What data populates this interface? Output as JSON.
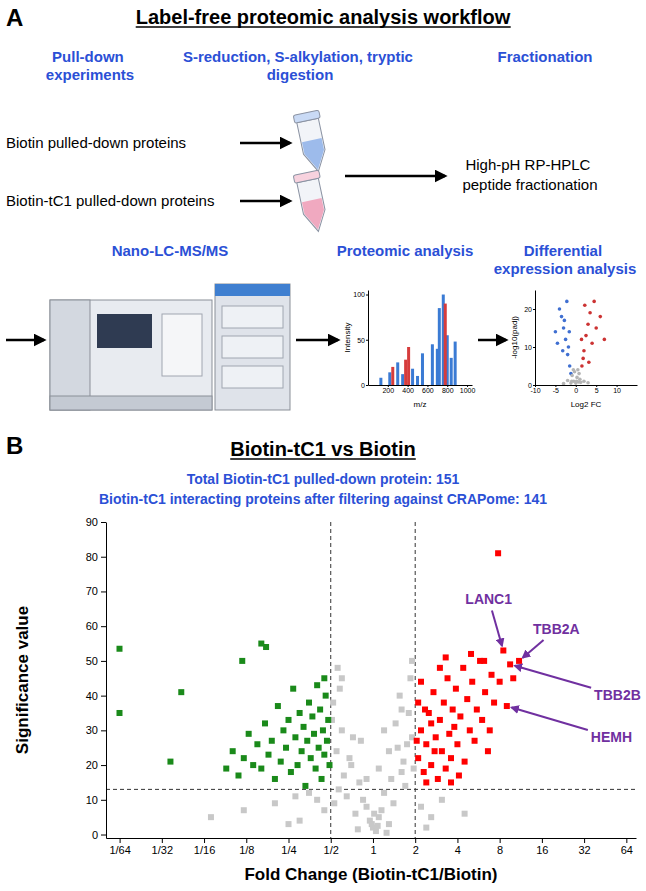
{
  "workflow": {
    "panel_label": "A",
    "title": "Label-free proteomic analysis workflow",
    "steps": [
      "Pull-down experiments",
      "S-reduction, S-alkylation, tryptic digestion",
      "Fractionation",
      "Nano-LC-MS/MS",
      "Proteomic analysis",
      "Differential expression analysis"
    ],
    "samples": [
      "Biotin pulled-down proteins",
      "Biotin-tC1 pulled-down proteins"
    ],
    "fractionation": "High-pH RP-HPLC peptide fractionation",
    "spectrum": {
      "type": "bar",
      "x_label": "m/z",
      "y_label": "Intensity",
      "xlim": [
        0,
        1050
      ],
      "ylim": [
        0,
        105
      ],
      "xticks": [
        200,
        400,
        600,
        800,
        1000
      ],
      "yticks": [
        0,
        50,
        100
      ],
      "series": [
        {
          "color": "#3b7bd4",
          "x": [
            130,
            220,
            300,
            350,
            450,
            500,
            550,
            650,
            700,
            720,
            760,
            800,
            840,
            880
          ],
          "values": [
            8,
            14,
            25,
            12,
            18,
            10,
            35,
            45,
            40,
            85,
            100,
            55,
            30,
            48
          ]
        },
        {
          "color": "#d63c3c",
          "x": [
            250,
            380,
            410,
            780
          ],
          "values": [
            20,
            28,
            42,
            90
          ]
        }
      ]
    },
    "volcano_icon": {
      "type": "scatter",
      "x_label": "Log2 FC",
      "y_label": "-log10(padj)",
      "xlim": [
        -10,
        15
      ],
      "ylim": [
        0,
        25
      ],
      "xticks": [
        -10,
        -5,
        0,
        5,
        10
      ],
      "yticks": [
        0,
        10,
        20
      ],
      "series": [
        {
          "color": "#3f6fd1",
          "x": [
            -1.5,
            -2,
            -2.5,
            -3,
            -3.5,
            -4,
            -2.2,
            -1.8,
            -5,
            -1.2,
            -3.2,
            -2.8,
            -4.5,
            -1.6
          ],
          "values": [
            5,
            8,
            12,
            15,
            18,
            20,
            22,
            10,
            14,
            3,
            9,
            17,
            11,
            14
          ]
        },
        {
          "color": "#cc3333",
          "x": [
            1.5,
            2,
            2.5,
            3,
            3.5,
            4,
            2.2,
            1.8,
            5,
            6,
            7,
            4.5,
            3.2,
            1.4
          ],
          "values": [
            5,
            9,
            13,
            16,
            19,
            11,
            21,
            7,
            15,
            18,
            12,
            22,
            6,
            12
          ]
        },
        {
          "color": "#b5b5b5",
          "x": [
            -0.5,
            0.3,
            0,
            0.8,
            -0.9,
            0.5,
            -0.3,
            1,
            -1,
            0.2,
            -0.6,
            0.7,
            -1.2,
            1.2,
            2,
            -2,
            3,
            -3
          ],
          "values": [
            1,
            2,
            0.5,
            3,
            2.5,
            4,
            3.5,
            1.5,
            1,
            1,
            4,
            0.8,
            0.5,
            0.7,
            1,
            1.2,
            0.6,
            0.4
          ]
        }
      ]
    }
  },
  "chart_data": {
    "panel_label": "B",
    "type": "scatter",
    "title": "Biotin-tC1 vs Biotin",
    "subtitle": [
      "Total Biotin-tC1 pulled-down protein: 151",
      "Biotin-tC1 interacting proteins after filtering against CRAPome: 141"
    ],
    "x_label": "Fold Change (Biotin-tC1/Biotin)",
    "y_label": "Significance value",
    "log": "x",
    "grid": false,
    "marker": "square",
    "xlim": [
      0.0125,
      75
    ],
    "ylim": [
      -1,
      90
    ],
    "xticks": [
      {
        "value": 0.015625,
        "label": "1/64"
      },
      {
        "value": 0.03125,
        "label": "1/32"
      },
      {
        "value": 0.0625,
        "label": "1/16"
      },
      {
        "value": 0.125,
        "label": "1/8"
      },
      {
        "value": 0.25,
        "label": "1/4"
      },
      {
        "value": 0.5,
        "label": "1/2"
      },
      1,
      2,
      4,
      8,
      16,
      32,
      64
    ],
    "yticks": [
      0,
      10,
      20,
      30,
      40,
      50,
      60,
      70,
      80,
      90
    ],
    "thresholds": {
      "x": [
        0.5,
        2
      ],
      "y": 13
    },
    "series": [
      {
        "color": "#ff0000",
        "x": [
          2.1,
          2.2,
          2.3,
          2.4,
          2.5,
          2.6,
          2.7,
          2.8,
          2.9,
          3,
          3.1,
          3.2,
          3.3,
          3.4,
          3.5,
          3.6,
          3.7,
          3.8,
          3.9,
          4,
          4.2,
          4.4,
          4.5,
          4.7,
          4.9,
          5.1,
          5.3,
          5.5,
          5.8,
          6,
          6.3,
          6.6,
          7,
          7.3,
          7.8,
          8.5,
          11,
          9.5,
          9,
          2.2,
          2.4,
          2.6,
          3,
          3.3,
          2.1,
          5,
          6.8,
          8,
          4.1,
          3.6,
          2.05,
          2.35,
          2.75,
          10,
          6.2
        ],
        "values": [
          22,
          30,
          18,
          26,
          35,
          20,
          41,
          28,
          16,
          33,
          24,
          38,
          19,
          45,
          29,
          22,
          36,
          31,
          42,
          26,
          34,
          48,
          21,
          39,
          30,
          44,
          27,
          36,
          50,
          33,
          41,
          24,
          46,
          38,
          81,
          53,
          50,
          49,
          37,
          44,
          15,
          32,
          48,
          51,
          38,
          52,
          30,
          44,
          17,
          15,
          27,
          36,
          24,
          45,
          50
        ]
      },
      {
        "color": "#1a8a1a",
        "x": [
          0.49,
          0.48,
          0.47,
          0.46,
          0.45,
          0.44,
          0.43,
          0.42,
          0.41,
          0.4,
          0.39,
          0.38,
          0.37,
          0.36,
          0.35,
          0.34,
          0.33,
          0.32,
          0.31,
          0.3,
          0.29,
          0.28,
          0.27,
          0.26,
          0.25,
          0.24,
          0.23,
          0.22,
          0.21,
          0.2,
          0.19,
          0.18,
          0.17,
          0.16,
          0.15,
          0.14,
          0.13,
          0.12,
          0.11,
          0.1,
          0.09,
          0.036,
          0.173,
          0.16,
          0.117,
          0.043,
          0.0156,
          0.0156,
          0.45
        ],
        "values": [
          20,
          33,
          27,
          40,
          23,
          30,
          16,
          36,
          25,
          43,
          19,
          29,
          34,
          22,
          38,
          27,
          14,
          31,
          24,
          35,
          20,
          28,
          42,
          18,
          33,
          25,
          30,
          21,
          37,
          16,
          27,
          23,
          32,
          19,
          26,
          20,
          29,
          22,
          17,
          24,
          19,
          21,
          54,
          55,
          50,
          41,
          53.5,
          35,
          45
        ]
      },
      {
        "color": "#c8c8c8",
        "x": [
          1,
          1.1,
          0.9,
          1.2,
          0.8,
          1.3,
          0.75,
          1.4,
          0.7,
          1.5,
          0.65,
          1.6,
          0.6,
          1.7,
          0.55,
          1.8,
          0.52,
          1.9,
          0.58,
          1.85,
          1.05,
          0.95,
          1.15,
          0.85,
          1.25,
          0.78,
          1.35,
          0.68,
          1.45,
          0.62,
          1.55,
          0.57,
          1.65,
          0.53,
          1.75,
          0.51,
          1.95,
          0.98,
          1.02,
          1.08,
          2.2,
          2.6,
          3.1,
          2.4,
          4.5,
          0.45,
          0.4,
          0.3,
          0.35,
          0.2,
          0.25,
          0.12,
          0.07,
          0.28,
          1.3,
          0.72,
          1.6,
          0.6,
          1.9,
          0.56,
          1.2,
          0.82,
          1.1,
          0.9
        ],
        "values": [
          2,
          5,
          8,
          12,
          15,
          3,
          6,
          9,
          20,
          25,
          11,
          18,
          30,
          14,
          24,
          35,
          38,
          28,
          42,
          45,
          1,
          4,
          7,
          10,
          0.5,
          1.5,
          16,
          22,
          32,
          17,
          40,
          13,
          21,
          9,
          26,
          33,
          19,
          3,
          6,
          2.5,
          8,
          5,
          10,
          2,
          6,
          7,
          10,
          4,
          12,
          9,
          3,
          7,
          5,
          11,
          24,
          28,
          36,
          45,
          50,
          48,
          30,
          27,
          19,
          16
        ]
      }
    ],
    "annotations": [
      {
        "text": "LANC1",
        "x": 8.5,
        "y": 53,
        "color": "#7030a0"
      },
      {
        "text": "TBB2A",
        "x": 11,
        "y": 50,
        "color": "#7030a0"
      },
      {
        "text": "TBB2B",
        "x": 9.5,
        "y": 49,
        "color": "#7030a0"
      },
      {
        "text": "HEMH",
        "x": 9,
        "y": 37,
        "color": "#7030a0"
      }
    ]
  }
}
